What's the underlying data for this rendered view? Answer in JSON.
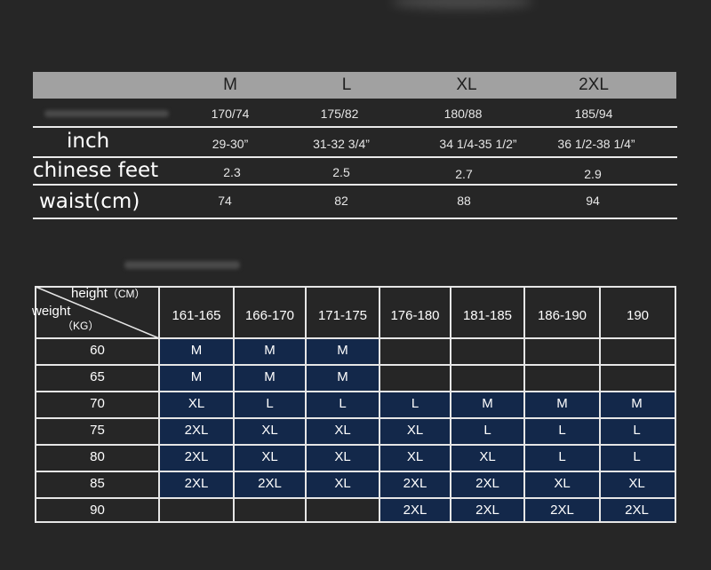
{
  "size_table": {
    "sizes": [
      "M",
      "L",
      "XL",
      "2XL"
    ],
    "height_weight": [
      "170/74",
      "175/82",
      "180/88",
      "185/94"
    ],
    "rows": [
      {
        "label": "inch",
        "values": [
          "29-30”",
          "31-32 3/4”",
          "34 1/4-35 1/2”",
          "36 1/2-38 1/4”"
        ]
      },
      {
        "label": "chinese feet",
        "values": [
          "2.3",
          "2.5",
          "2.7",
          "2.9"
        ]
      },
      {
        "label": "waist(cm)",
        "values": [
          "74",
          "82",
          "88",
          "94"
        ]
      }
    ]
  },
  "weight_height_chart": {
    "corner": {
      "height_label": "height",
      "height_unit": "（CM）",
      "weight_label": "weight",
      "weight_unit": "（KG）"
    },
    "height_columns": [
      "161-165",
      "166-170",
      "171-175",
      "176-180",
      "181-185",
      "186-190",
      "190"
    ],
    "rows": [
      {
        "weight": "60",
        "sizes": [
          "M",
          "M",
          "M",
          "",
          "",
          "",
          ""
        ]
      },
      {
        "weight": "65",
        "sizes": [
          "M",
          "M",
          "M",
          "",
          "",
          "",
          ""
        ]
      },
      {
        "weight": "70",
        "sizes": [
          "XL",
          "L",
          "L",
          "L",
          "M",
          "M",
          "M"
        ]
      },
      {
        "weight": "75",
        "sizes": [
          "2XL",
          "XL",
          "XL",
          "XL",
          "L",
          "L",
          "L"
        ]
      },
      {
        "weight": "80",
        "sizes": [
          "2XL",
          "XL",
          "XL",
          "XL",
          "XL",
          "L",
          "L"
        ]
      },
      {
        "weight": "85",
        "sizes": [
          "2XL",
          "2XL",
          "XL",
          "2XL",
          "2XL",
          "XL",
          "XL"
        ]
      },
      {
        "weight": "90",
        "sizes": [
          "",
          "",
          "",
          "2XL",
          "2XL",
          "2XL",
          "2XL"
        ]
      }
    ],
    "highlight_color": "#13284a"
  }
}
